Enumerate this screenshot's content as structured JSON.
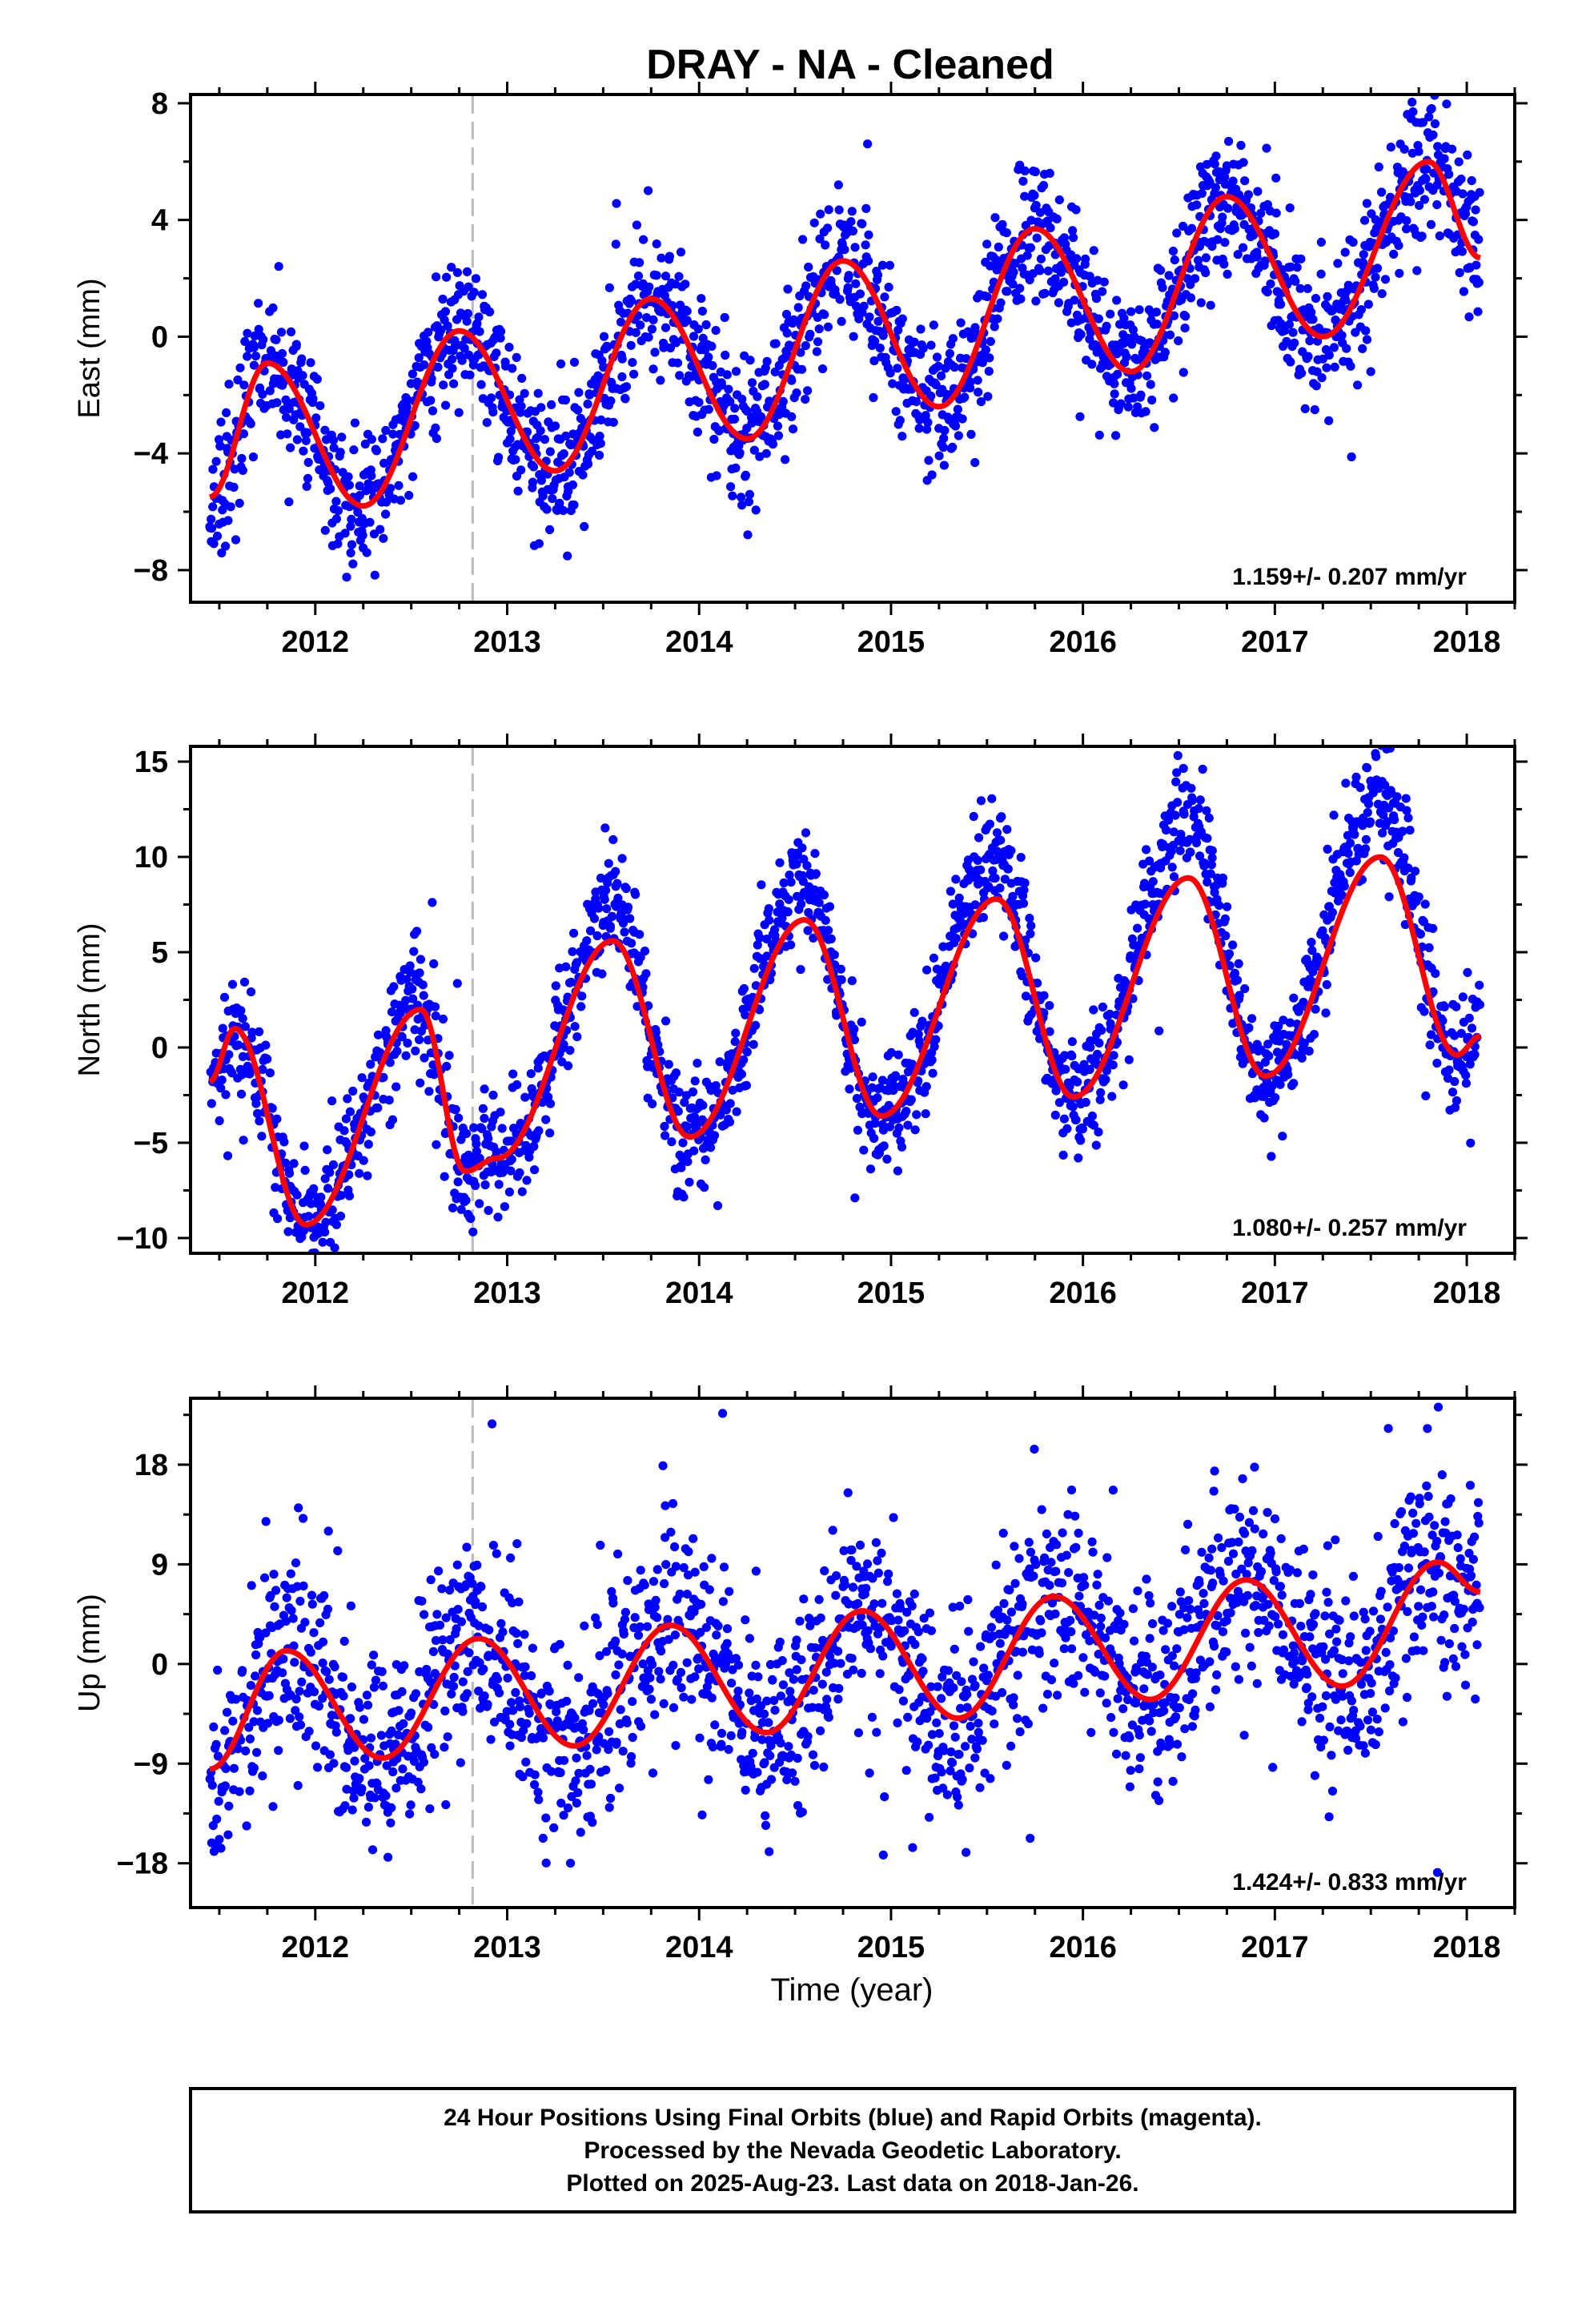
{
  "title": "DRAY  - NA - Cleaned",
  "colors": {
    "points": "#0000ff",
    "fit": "#ff0000",
    "marker_line": "#bbbbbb",
    "frame": "#000000"
  },
  "x_axis": {
    "label": "Time (year)",
    "range": [
      2011.35,
      2018.25
    ],
    "ticks": [
      2012,
      2013,
      2014,
      2015,
      2016,
      2017,
      2018
    ]
  },
  "event_marker_year": 2012.82,
  "chart_data": [
    {
      "type": "scatter",
      "name": "east",
      "ylabel": "East (mm)",
      "rate": "1.159+/- 0.207 mm/yr",
      "ylim": [
        -9.1,
        8.3
      ],
      "yticks": [
        -8,
        -4,
        0,
        4,
        8
      ],
      "fit_curve": [
        {
          "x": 2011.45,
          "y": -5.5
        },
        {
          "x": 2011.75,
          "y": -0.9
        },
        {
          "x": 2012.25,
          "y": -5.8
        },
        {
          "x": 2012.75,
          "y": 0.2
        },
        {
          "x": 2013.25,
          "y": -4.6
        },
        {
          "x": 2013.75,
          "y": 1.3
        },
        {
          "x": 2014.25,
          "y": -3.5
        },
        {
          "x": 2014.75,
          "y": 2.6
        },
        {
          "x": 2015.25,
          "y": -2.4
        },
        {
          "x": 2015.75,
          "y": 3.7
        },
        {
          "x": 2016.25,
          "y": -1.2
        },
        {
          "x": 2016.75,
          "y": 4.8
        },
        {
          "x": 2017.25,
          "y": 0.0
        },
        {
          "x": 2017.8,
          "y": 6.0
        },
        {
          "x": 2018.07,
          "y": 2.7
        }
      ],
      "scatter": {
        "start": 2011.45,
        "end": 2018.07,
        "count": 2250,
        "spread": 1.2,
        "seed": 11
      }
    },
    {
      "type": "scatter",
      "name": "north",
      "ylabel": "North (mm)",
      "rate": "1.080+/- 0.257 mm/yr",
      "ylim": [
        -10.8,
        15.8
      ],
      "yticks": [
        -10,
        -5,
        0,
        5,
        10,
        15
      ],
      "fit_curve": [
        {
          "x": 2011.45,
          "y": -1.8
        },
        {
          "x": 2011.58,
          "y": 1.0
        },
        {
          "x": 2011.95,
          "y": -9.3
        },
        {
          "x": 2012.55,
          "y": 2.0
        },
        {
          "x": 2012.78,
          "y": -6.5
        },
        {
          "x": 2012.95,
          "y": -5.8
        },
        {
          "x": 2013.55,
          "y": 5.6
        },
        {
          "x": 2013.95,
          "y": -4.7
        },
        {
          "x": 2014.55,
          "y": 6.7
        },
        {
          "x": 2014.95,
          "y": -3.6
        },
        {
          "x": 2015.55,
          "y": 7.8
        },
        {
          "x": 2015.95,
          "y": -2.6
        },
        {
          "x": 2016.55,
          "y": 8.9
        },
        {
          "x": 2016.95,
          "y": -1.5
        },
        {
          "x": 2017.55,
          "y": 10.0
        },
        {
          "x": 2017.95,
          "y": -0.4
        },
        {
          "x": 2018.07,
          "y": 0.6
        }
      ],
      "scatter": {
        "start": 2011.45,
        "end": 2018.07,
        "count": 2250,
        "spread": 1.5,
        "seed": 23,
        "peak_boost": 3.5
      }
    },
    {
      "type": "scatter",
      "name": "up",
      "ylabel": "Up (mm)",
      "rate": "1.424+/- 0.833 mm/yr",
      "ylim": [
        -22,
        24
      ],
      "yticks": [
        -18,
        -9,
        0,
        9,
        18
      ],
      "fit_curve": [
        {
          "x": 2011.45,
          "y": -9.5
        },
        {
          "x": 2011.85,
          "y": 1.2
        },
        {
          "x": 2012.35,
          "y": -8.5
        },
        {
          "x": 2012.85,
          "y": 2.3
        },
        {
          "x": 2013.35,
          "y": -7.4
        },
        {
          "x": 2013.85,
          "y": 3.5
        },
        {
          "x": 2014.35,
          "y": -6.2
        },
        {
          "x": 2014.85,
          "y": 4.8
        },
        {
          "x": 2015.35,
          "y": -4.9
        },
        {
          "x": 2015.85,
          "y": 6.1
        },
        {
          "x": 2016.35,
          "y": -3.2
        },
        {
          "x": 2016.85,
          "y": 7.6
        },
        {
          "x": 2017.35,
          "y": -2.0
        },
        {
          "x": 2017.85,
          "y": 9.2
        },
        {
          "x": 2018.07,
          "y": 6.5
        }
      ],
      "scatter": {
        "start": 2011.45,
        "end": 2018.07,
        "count": 2250,
        "spread": 4.8,
        "seed": 37
      }
    }
  ],
  "caption_lines": [
    "24 Hour Positions Using Final Orbits (blue) and Rapid Orbits (magenta).",
    "Processed by the Nevada Geodetic Laboratory.",
    "Plotted on 2025-Aug-23. Last data on 2018-Jan-26."
  ]
}
